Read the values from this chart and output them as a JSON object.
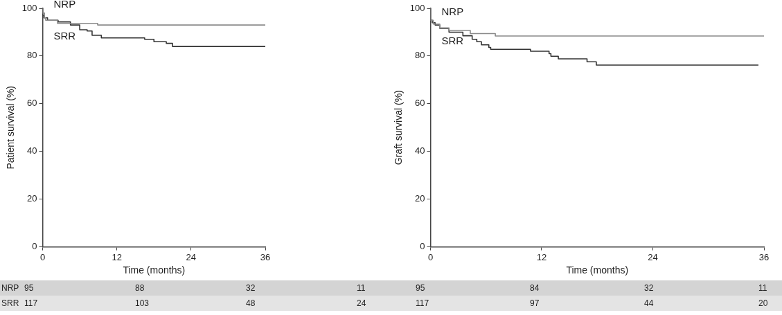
{
  "chart_data": [
    {
      "type": "step",
      "xlabel": "Time (months)",
      "ylabel": "Patient survival (%)",
      "xlim": [
        0,
        36
      ],
      "xticks": [
        0,
        12,
        24,
        36
      ],
      "ylim": [
        0,
        100
      ],
      "yticks": [
        0,
        20,
        40,
        60,
        80,
        100
      ],
      "grid": false,
      "legend": false,
      "line_style": "solid",
      "series": [
        {
          "name": "NRP",
          "color": "#8a8a8a",
          "x": [
            0,
            0.3,
            0.5,
            2.4,
            8.9,
            13.7,
            36
          ],
          "values": [
            100,
            98,
            96,
            95,
            93.7,
            93,
            93
          ]
        },
        {
          "name": "SRR",
          "color": "#333333",
          "x": [
            0,
            0.2,
            0.8,
            2.5,
            4.5,
            6,
            7.2,
            8,
            9.5,
            16.5,
            18,
            20,
            21,
            31.6,
            36
          ],
          "values": [
            100,
            97,
            96,
            95,
            94.3,
            93,
            91,
            90.5,
            88.7,
            87.6,
            87,
            86,
            85.3,
            84,
            84
          ]
        }
      ],
      "annotations": [
        "NRP",
        "95",
        "88",
        "32",
        "11",
        "SRR",
        "117",
        "103",
        "48",
        "24"
      ]
    },
    {
      "type": "step",
      "xlabel": "Time (months)",
      "ylabel": "Graft survival (%)",
      "xlim": [
        0,
        36
      ],
      "xticks": [
        0,
        12,
        24,
        36
      ],
      "ylim": [
        0,
        100
      ],
      "yticks": [
        0,
        20,
        40,
        60,
        80,
        100
      ],
      "grid": false,
      "legend": false,
      "line_style": "solid",
      "series": [
        {
          "name": "NRP",
          "color": "#8a8a8a",
          "x": [
            0,
            0.3,
            1,
            2,
            4.3,
            7,
            9.2,
            36
          ],
          "values": [
            100,
            95,
            93.4,
            91.8,
            90.7,
            89.4,
            88.4,
            88.4
          ]
        },
        {
          "name": "SRR",
          "color": "#333333",
          "x": [
            0,
            0.2,
            0.5,
            1,
            2,
            3.5,
            4.5,
            5,
            5.5,
            6.3,
            6.5,
            10.8,
            12.8,
            13,
            13.8,
            16.9,
            17.9,
            20.8,
            35.4
          ],
          "values": [
            100,
            95,
            94,
            93,
            91.6,
            90,
            88.5,
            87,
            86,
            84.7,
            83.6,
            82.8,
            82,
            81,
            79.9,
            78.8,
            77.6,
            76.2,
            76.2
          ]
        }
      ],
      "annotations": [
        "95",
        "84",
        "32",
        "11",
        "117",
        "97",
        "44",
        "20"
      ]
    }
  ]
}
